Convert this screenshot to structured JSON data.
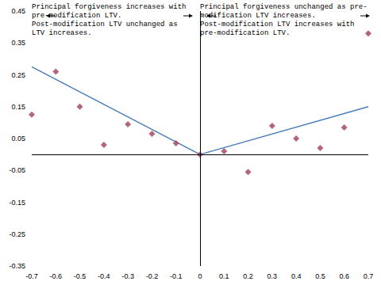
{
  "chart_data": {
    "type": "scatter",
    "xlim": [
      -0.7,
      0.7
    ],
    "xticks": [
      -0.7,
      -0.6,
      -0.5,
      -0.4,
      -0.3,
      -0.2,
      -0.1,
      0,
      0.1,
      0.2,
      0.3,
      0.4,
      0.5,
      0.6,
      0.7
    ],
    "ylim": [
      -0.35,
      0.45
    ],
    "yticks": [
      -0.35,
      -0.25,
      -0.15,
      -0.05,
      0.05,
      0.15,
      0.25,
      0.35,
      0.45
    ],
    "grid": false,
    "series": [
      {
        "type": "scatter",
        "color": "#a0405a",
        "marker": "diamond",
        "x": [
          -0.7,
          -0.6,
          -0.5,
          -0.4,
          -0.3,
          -0.2,
          -0.1,
          0,
          0.1,
          0.2,
          0.3,
          0.4,
          0.5,
          0.6,
          0.7
        ],
        "values": [
          0.125,
          0.26,
          0.15,
          0.03,
          0.095,
          0.065,
          0.035,
          0.0,
          0.01,
          -0.055,
          0.09,
          0.05,
          0.02,
          0.085,
          0.38
        ]
      },
      {
        "type": "line",
        "color": "#4a7ebb",
        "marker": "none",
        "line_style": "solid",
        "x": [
          -0.7,
          0,
          0.7
        ],
        "values": [
          0.275,
          0,
          0.15
        ]
      }
    ],
    "annotations": [
      [
        "Principal forgiveness increases with",
        "pre-modification LTV.",
        "Post-modification LTV unchanged as",
        "LTV increases."
      ],
      [
        "Principal forgiveness unchanged as pre-",
        "modification LTV increases.",
        "Post-modification LTV increases with",
        "pre-modification LTV."
      ]
    ]
  }
}
